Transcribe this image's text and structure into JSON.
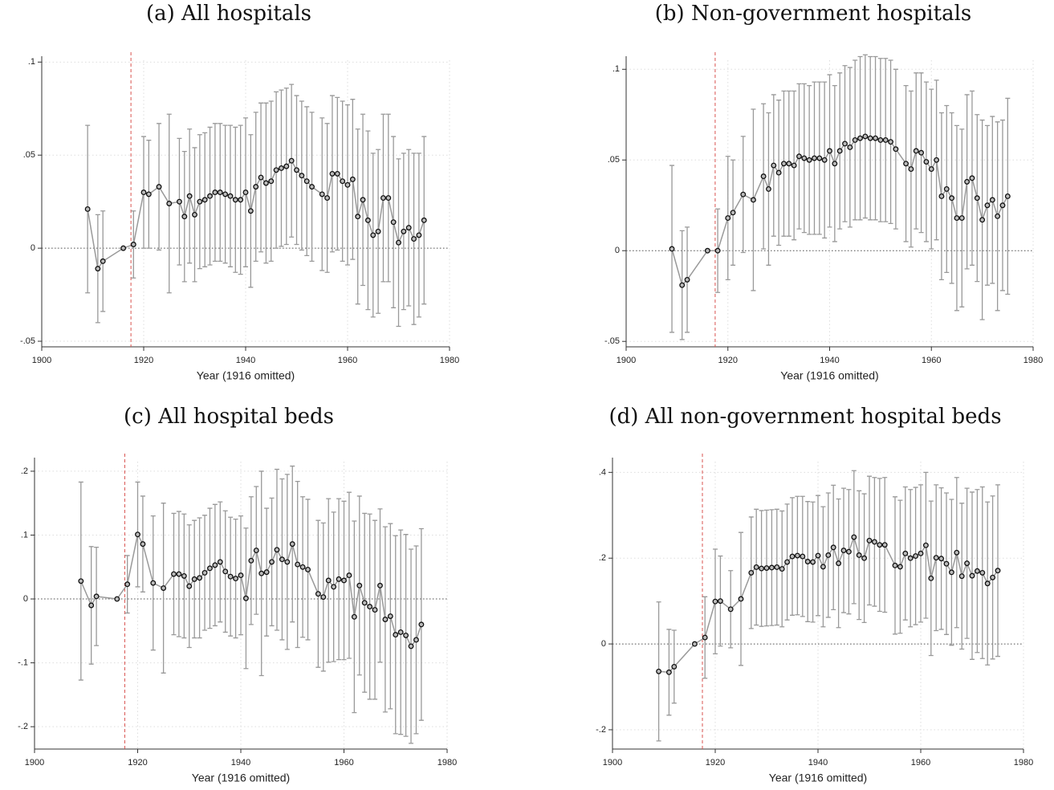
{
  "chart_data": [
    {
      "type": "errorbar",
      "title": "(a) All hospitals",
      "xlabel": "Year (1916 omitted)",
      "x": [
        1909,
        1911,
        1912,
        1916,
        1918,
        1920,
        1921,
        1923,
        1925,
        1927,
        1928,
        1929,
        1930,
        1931,
        1932,
        1933,
        1934,
        1935,
        1936,
        1937,
        1938,
        1939,
        1940,
        1941,
        1942,
        1943,
        1944,
        1945,
        1946,
        1947,
        1948,
        1949,
        1950,
        1951,
        1952,
        1953,
        1955,
        1956,
        1957,
        1958,
        1959,
        1960,
        1961,
        1962,
        1963,
        1964,
        1965,
        1966,
        1967,
        1968,
        1969,
        1970,
        1971,
        1972,
        1973,
        1974,
        1975
      ],
      "values": [
        0.021,
        -0.011,
        -0.007,
        0,
        0.002,
        0.03,
        0.029,
        0.033,
        0.024,
        0.025,
        0.017,
        0.028,
        0.018,
        0.025,
        0.026,
        0.028,
        0.03,
        0.03,
        0.029,
        0.028,
        0.026,
        0.026,
        0.03,
        0.02,
        0.033,
        0.038,
        0.035,
        0.036,
        0.042,
        0.043,
        0.044,
        0.047,
        0.042,
        0.039,
        0.036,
        0.033,
        0.029,
        0.027,
        0.04,
        0.04,
        0.036,
        0.034,
        0.037,
        0.017,
        0.026,
        0.015,
        0.007,
        0.009,
        0.027,
        0.027,
        0.014,
        0.003,
        0.009,
        0.011,
        0.005,
        0.007,
        0.015
      ],
      "errors": [
        0.045,
        0.029,
        0.027,
        0,
        0.018,
        0.03,
        0.029,
        0.034,
        0.048,
        0.034,
        0.035,
        0.036,
        0.036,
        0.036,
        0.036,
        0.037,
        0.037,
        0.037,
        0.037,
        0.038,
        0.039,
        0.04,
        0.04,
        0.041,
        0.04,
        0.04,
        0.043,
        0.043,
        0.042,
        0.042,
        0.042,
        0.041,
        0.04,
        0.04,
        0.04,
        0.04,
        0.041,
        0.04,
        0.042,
        0.041,
        0.043,
        0.043,
        0.043,
        0.047,
        0.046,
        0.048,
        0.044,
        0.044,
        0.045,
        0.045,
        0.046,
        0.045,
        0.042,
        0.042,
        0.046,
        0.044,
        0.045
      ],
      "color": "#999999",
      "vline": 1917.5,
      "vline_color": "#d9534f",
      "hline": 0,
      "grid": true,
      "xlim": [
        1900,
        1980
      ],
      "xticks": [
        1900,
        1920,
        1940,
        1960,
        1980
      ],
      "ylim": [
        -0.053,
        0.101
      ],
      "yticks": [
        {
          "value": -0.05,
          "label": "-.05"
        },
        0,
        {
          "value": 0.05,
          "label": ".05"
        },
        {
          "value": 0.1,
          "label": ".1"
        }
      ]
    },
    {
      "type": "errorbar",
      "title": "(b) Non-government hospitals",
      "xlabel": "Year (1916 omitted)",
      "x": [
        1909,
        1911,
        1912,
        1916,
        1918,
        1920,
        1921,
        1923,
        1925,
        1927,
        1928,
        1929,
        1930,
        1931,
        1932,
        1933,
        1934,
        1935,
        1936,
        1937,
        1938,
        1939,
        1940,
        1941,
        1942,
        1943,
        1944,
        1945,
        1946,
        1947,
        1948,
        1949,
        1950,
        1951,
        1952,
        1953,
        1955,
        1956,
        1957,
        1958,
        1959,
        1960,
        1961,
        1962,
        1963,
        1964,
        1965,
        1966,
        1967,
        1968,
        1969,
        1970,
        1971,
        1972,
        1973,
        1974,
        1975
      ],
      "values": [
        0.001,
        -0.019,
        -0.016,
        0,
        0.0,
        0.018,
        0.021,
        0.031,
        0.028,
        0.041,
        0.034,
        0.047,
        0.043,
        0.048,
        0.048,
        0.047,
        0.052,
        0.051,
        0.05,
        0.051,
        0.051,
        0.05,
        0.055,
        0.048,
        0.055,
        0.059,
        0.057,
        0.061,
        0.062,
        0.063,
        0.062,
        0.062,
        0.061,
        0.061,
        0.06,
        0.056,
        0.048,
        0.045,
        0.055,
        0.054,
        0.049,
        0.045,
        0.05,
        0.03,
        0.034,
        0.029,
        0.018,
        0.018,
        0.038,
        0.04,
        0.029,
        0.017,
        0.025,
        0.028,
        0.019,
        0.025,
        0.03
      ],
      "errors": [
        0.046,
        0.03,
        0.029,
        0,
        0.023,
        0.034,
        0.029,
        0.032,
        0.05,
        0.04,
        0.042,
        0.039,
        0.04,
        0.04,
        0.04,
        0.041,
        0.04,
        0.041,
        0.041,
        0.042,
        0.042,
        0.043,
        0.042,
        0.043,
        0.043,
        0.043,
        0.044,
        0.044,
        0.045,
        0.045,
        0.045,
        0.045,
        0.045,
        0.045,
        0.045,
        0.044,
        0.043,
        0.043,
        0.043,
        0.044,
        0.044,
        0.044,
        0.044,
        0.046,
        0.046,
        0.047,
        0.051,
        0.049,
        0.048,
        0.048,
        0.046,
        0.055,
        0.044,
        0.046,
        0.052,
        0.047,
        0.054
      ],
      "color": "#999999",
      "vline": 1917.5,
      "vline_color": "#d9534f",
      "hline": 0,
      "grid": true,
      "xlim": [
        1900,
        1980
      ],
      "xticks": [
        1900,
        1920,
        1940,
        1960,
        1980
      ],
      "ylim": [
        -0.053,
        0.105
      ],
      "yticks": [
        {
          "value": -0.05,
          "label": "-.05"
        },
        0,
        {
          "value": 0.05,
          "label": ".05"
        },
        {
          "value": 0.1,
          "label": ".1"
        }
      ]
    },
    {
      "type": "errorbar",
      "title": "(c) All hospital beds",
      "xlabel": "Year (1916 omitted)",
      "x": [
        1909,
        1911,
        1912,
        1916,
        1918,
        1920,
        1921,
        1923,
        1925,
        1927,
        1928,
        1929,
        1930,
        1931,
        1932,
        1933,
        1934,
        1935,
        1936,
        1937,
        1938,
        1939,
        1940,
        1941,
        1942,
        1943,
        1944,
        1945,
        1946,
        1947,
        1948,
        1949,
        1950,
        1951,
        1952,
        1953,
        1955,
        1956,
        1957,
        1958,
        1959,
        1960,
        1961,
        1962,
        1963,
        1964,
        1965,
        1966,
        1967,
        1968,
        1969,
        1970,
        1971,
        1972,
        1973,
        1974,
        1975
      ],
      "values": [
        0.028,
        -0.01,
        0.004,
        0,
        0.023,
        0.101,
        0.086,
        0.025,
        0.017,
        0.039,
        0.039,
        0.036,
        0.02,
        0.031,
        0.033,
        0.041,
        0.048,
        0.053,
        0.058,
        0.043,
        0.035,
        0.032,
        0.037,
        0.001,
        0.06,
        0.076,
        0.04,
        0.042,
        0.058,
        0.077,
        0.062,
        0.058,
        0.086,
        0.054,
        0.05,
        0.046,
        0.008,
        0.003,
        0.029,
        0.019,
        0.031,
        0.029,
        0.037,
        -0.028,
        0.021,
        -0.006,
        -0.012,
        -0.017,
        0.021,
        -0.032,
        -0.027,
        -0.056,
        -0.052,
        -0.057,
        -0.074,
        -0.064,
        -0.04
      ],
      "errors": [
        0.155,
        0.092,
        0.077,
        0,
        0.045,
        0.082,
        0.075,
        0.105,
        0.133,
        0.095,
        0.098,
        0.097,
        0.096,
        0.092,
        0.094,
        0.09,
        0.094,
        0.095,
        0.094,
        0.095,
        0.093,
        0.093,
        0.093,
        0.11,
        0.1,
        0.1,
        0.16,
        0.1,
        0.1,
        0.126,
        0.126,
        0.137,
        0.122,
        0.13,
        0.11,
        0.11,
        0.115,
        0.116,
        0.128,
        0.117,
        0.126,
        0.124,
        0.13,
        0.15,
        0.14,
        0.14,
        0.145,
        0.14,
        0.12,
        0.145,
        0.145,
        0.155,
        0.16,
        0.158,
        0.152,
        0.147,
        0.15
      ],
      "color": "#999999",
      "vline": 1917.5,
      "vline_color": "#d9534f",
      "hline": 0,
      "grid": true,
      "xlim": [
        1900,
        1980
      ],
      "xticks": [
        1900,
        1920,
        1940,
        1960,
        1980
      ],
      "ylim": [
        -0.235,
        0.215
      ],
      "yticks": [
        {
          "value": -0.2,
          "label": "-.2"
        },
        {
          "value": -0.1,
          "label": "-.1"
        },
        0,
        {
          "value": 0.1,
          "label": ".1"
        },
        {
          "value": 0.2,
          "label": ".2"
        }
      ]
    },
    {
      "type": "errorbar",
      "title": "(d) All non-government hospital beds",
      "xlabel": "Year (1916 omitted)",
      "x": [
        1909,
        1911,
        1912,
        1916,
        1918,
        1920,
        1921,
        1923,
        1925,
        1927,
        1928,
        1929,
        1930,
        1931,
        1932,
        1933,
        1934,
        1935,
        1936,
        1937,
        1938,
        1939,
        1940,
        1941,
        1942,
        1943,
        1944,
        1945,
        1946,
        1947,
        1948,
        1949,
        1950,
        1951,
        1952,
        1953,
        1955,
        1956,
        1957,
        1958,
        1959,
        1960,
        1961,
        1962,
        1963,
        1964,
        1965,
        1966,
        1967,
        1968,
        1969,
        1970,
        1971,
        1972,
        1973,
        1974,
        1975
      ],
      "values": [
        -0.064,
        -0.066,
        -0.053,
        0,
        0.015,
        0.099,
        0.1,
        0.081,
        0.105,
        0.166,
        0.179,
        0.176,
        0.177,
        0.178,
        0.179,
        0.175,
        0.191,
        0.204,
        0.206,
        0.204,
        0.192,
        0.191,
        0.206,
        0.18,
        0.207,
        0.225,
        0.188,
        0.218,
        0.215,
        0.249,
        0.207,
        0.2,
        0.241,
        0.238,
        0.231,
        0.231,
        0.183,
        0.18,
        0.211,
        0.2,
        0.205,
        0.211,
        0.23,
        0.153,
        0.201,
        0.199,
        0.187,
        0.167,
        0.213,
        0.158,
        0.188,
        0.159,
        0.17,
        0.166,
        0.141,
        0.155,
        0.171
      ],
      "errors": [
        0.162,
        0.1,
        0.085,
        0,
        0.095,
        0.122,
        0.105,
        0.09,
        0.155,
        0.13,
        0.135,
        0.135,
        0.135,
        0.135,
        0.135,
        0.135,
        0.135,
        0.137,
        0.138,
        0.14,
        0.14,
        0.14,
        0.14,
        0.14,
        0.145,
        0.145,
        0.15,
        0.145,
        0.145,
        0.155,
        0.15,
        0.15,
        0.15,
        0.15,
        0.155,
        0.157,
        0.16,
        0.155,
        0.155,
        0.16,
        0.16,
        0.16,
        0.17,
        0.18,
        0.17,
        0.165,
        0.165,
        0.17,
        0.175,
        0.17,
        0.175,
        0.195,
        0.19,
        0.2,
        0.19,
        0.19,
        0.2
      ],
      "color": "#999999",
      "vline": 1917.5,
      "vline_color": "#d9534f",
      "hline": 0,
      "grid": true,
      "xlim": [
        1900,
        1980
      ],
      "xticks": [
        1900,
        1920,
        1940,
        1960,
        1980
      ],
      "ylim": [
        -0.245,
        0.425
      ],
      "yticks": [
        {
          "value": -0.2,
          "label": "-.2"
        },
        0,
        {
          "value": 0.2,
          "label": ".2"
        },
        {
          "value": 0.4,
          "label": ".4"
        }
      ]
    }
  ]
}
